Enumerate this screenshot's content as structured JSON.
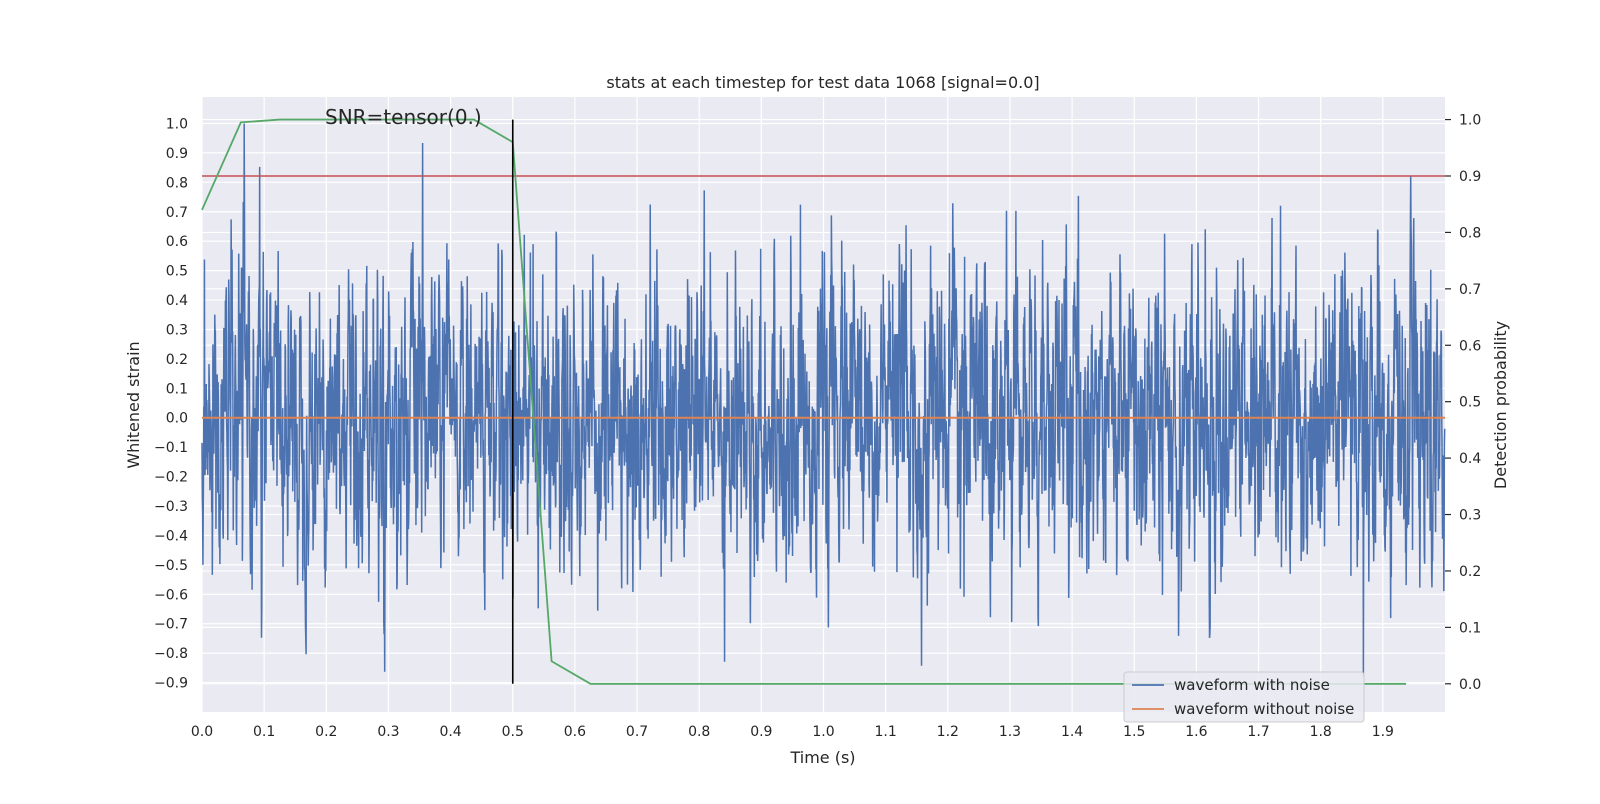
{
  "chart_data": {
    "type": "line",
    "title": "stats at each timestep for test data 1068 [signal=0.0]",
    "xlabel": "Time (s)",
    "ylabel": "Whitened strain",
    "y2label": "Detection probability",
    "xlim": [
      0.0,
      2.0
    ],
    "ylim": [
      -1.0,
      1.09
    ],
    "y2lim": [
      -0.05,
      1.04
    ],
    "xticks": [
      "0.0",
      "0.1",
      "0.2",
      "0.3",
      "0.4",
      "0.5",
      "0.6",
      "0.7",
      "0.8",
      "0.9",
      "1.0",
      "1.1",
      "1.2",
      "1.3",
      "1.4",
      "1.5",
      "1.6",
      "1.7",
      "1.8",
      "1.9"
    ],
    "yticks": [
      "1.0",
      "0.9",
      "0.8",
      "0.7",
      "0.6",
      "0.5",
      "0.4",
      "0.3",
      "0.2",
      "0.1",
      "0.0",
      "−0.1",
      "−0.2",
      "−0.3",
      "−0.4",
      "−0.5",
      "−0.6",
      "−0.7",
      "−0.8",
      "−0.9"
    ],
    "y2ticks": [
      "1.0",
      "0.9",
      "0.8",
      "0.7",
      "0.6",
      "0.5",
      "0.4",
      "0.3",
      "0.2",
      "0.1",
      "0.0"
    ],
    "annotation": "SNR=tensor(0.)",
    "threshold_probability": 0.9,
    "marker_time": 0.5,
    "series": [
      {
        "name": "waveform with noise",
        "color": "#4c72b0",
        "axis": "left",
        "kind": "noise",
        "sample_rate": 2048,
        "duration": 2.0,
        "approx_std": 0.25,
        "max": 1.0,
        "min": -0.88
      },
      {
        "name": "waveform without noise",
        "color": "#dd8452",
        "axis": "left",
        "x": [
          0.0,
          2.0
        ],
        "values": [
          0.0,
          0.0
        ]
      },
      {
        "name": "detection probability",
        "color": "#55a868",
        "axis": "right",
        "x": [
          0.0,
          0.0625,
          0.125,
          0.1875,
          0.25,
          0.3125,
          0.375,
          0.4375,
          0.5,
          0.5625,
          0.625,
          0.6875,
          0.75,
          0.8125,
          0.875,
          0.9375,
          1.0,
          1.0625,
          1.125,
          1.1875,
          1.25,
          1.3125,
          1.375,
          1.4375,
          1.5,
          1.5625,
          1.625,
          1.6875,
          1.75,
          1.8125,
          1.875,
          1.9375
        ],
        "values": [
          0.84,
          0.995,
          1.0,
          1.0,
          1.0,
          1.0,
          1.0,
          1.0,
          0.96,
          0.04,
          0.0,
          0.0,
          0.0,
          0.0,
          0.0,
          0.0,
          0.0,
          0.0,
          0.0,
          0.0,
          0.0,
          0.0,
          0.0,
          0.0,
          0.0,
          0.0,
          0.0,
          0.0,
          0.0,
          0.0,
          0.0,
          0.0
        ]
      },
      {
        "name": "threshold",
        "color": "#c44e52",
        "axis": "right",
        "x": [
          0.0,
          2.0
        ],
        "values": [
          0.9,
          0.9
        ]
      }
    ],
    "legend": {
      "position": "bottom-right",
      "entries": [
        {
          "label": "waveform with noise",
          "color": "#4c72b0"
        },
        {
          "label": "waveform without noise",
          "color": "#dd8452"
        }
      ]
    },
    "grid": true
  }
}
